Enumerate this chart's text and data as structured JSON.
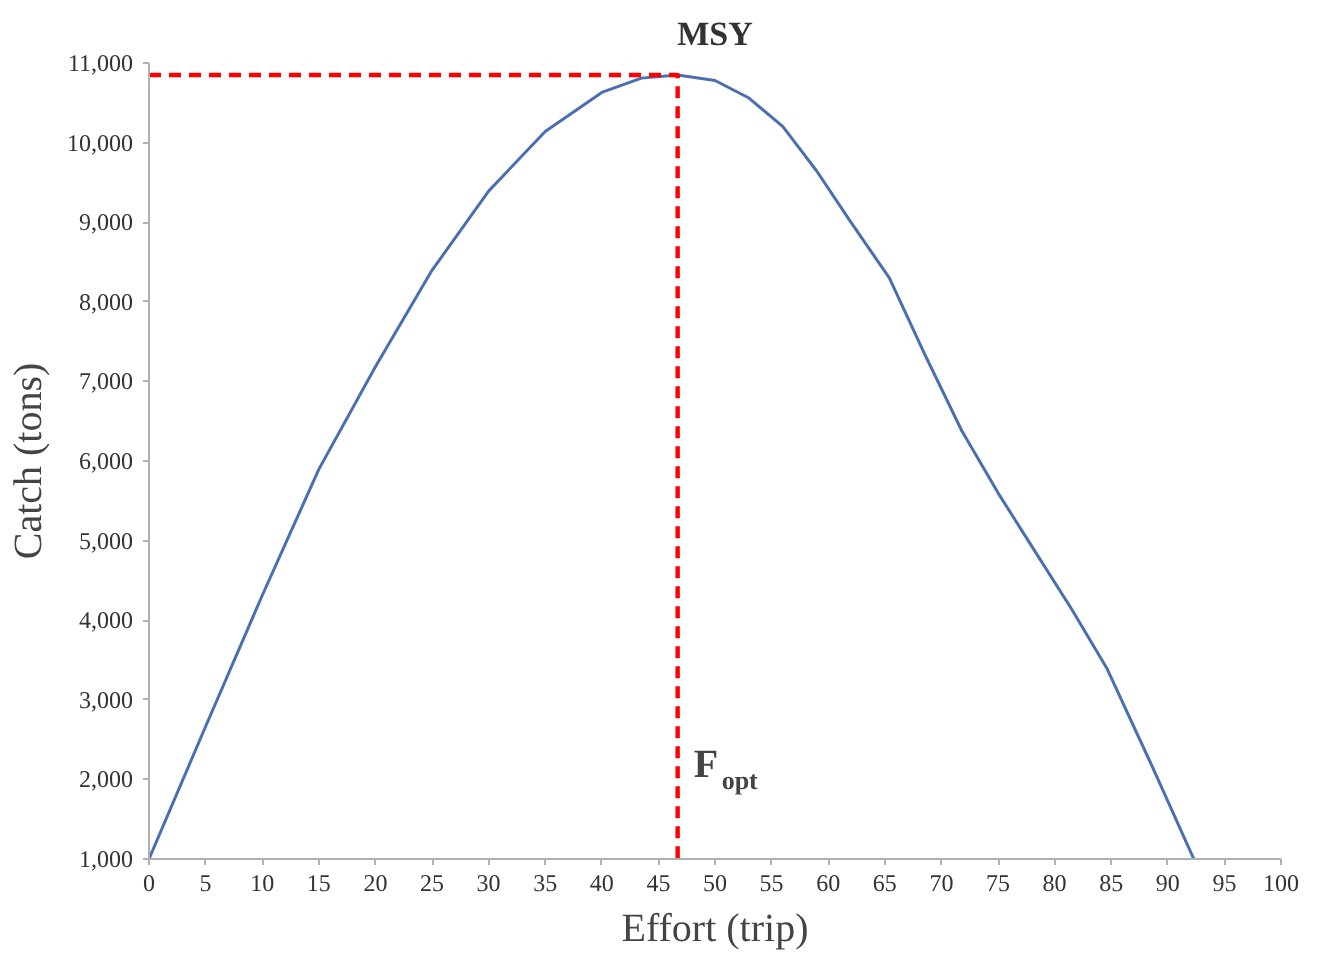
{
  "chart_data": {
    "type": "line",
    "title": "MSY",
    "xlabel": "Effort (trip)",
    "ylabel": "Catch (tons)",
    "xlim": [
      0,
      100
    ],
    "xticks": [
      0,
      5,
      10,
      15,
      20,
      25,
      30,
      35,
      40,
      45,
      50,
      55,
      60,
      65,
      70,
      75,
      80,
      85,
      90,
      95,
      100
    ],
    "ylim": [
      1000,
      11000
    ],
    "yticks": [
      {
        "value": 1000,
        "label": "1,000"
      },
      {
        "value": 2000,
        "label": "2,000"
      },
      {
        "value": 3000,
        "label": "3,000"
      },
      {
        "value": 4000,
        "label": "4,000"
      },
      {
        "value": 5000,
        "label": "5,000"
      },
      {
        "value": 6000,
        "label": "6,000"
      },
      {
        "value": 7000,
        "label": "7,000"
      },
      {
        "value": 8000,
        "label": "8,000"
      },
      {
        "value": 9000,
        "label": "9,000"
      },
      {
        "value": 10000,
        "label": "10,000"
      },
      {
        "value": 11000,
        "label": "11,000"
      }
    ],
    "marker": "none",
    "series": [
      {
        "color": "#4a6fb0",
        "x": [
          0,
          5,
          10,
          15,
          20,
          25,
          30,
          35,
          40,
          43.5,
          46.7,
          50,
          53,
          56,
          59,
          62,
          65.4,
          68.5,
          71.8,
          75,
          78.2,
          81.5,
          84.6,
          88.5,
          92.3
        ],
        "values": [
          1000,
          2665,
          4310,
          5895,
          7185,
          8395,
          9390,
          10140,
          10630,
          10810,
          10850,
          10780,
          10560,
          10200,
          9640,
          9000,
          8300,
          7350,
          6380,
          5600,
          4880,
          4140,
          3400,
          2200,
          1000
        ]
      },
      {
        "color": "#ff0000",
        "line_style": "dashed",
        "x": [
          0,
          46.7,
          46.7
        ],
        "values": [
          10850,
          10850,
          1000
        ]
      }
    ],
    "annotations": [
      {
        "text": "F$_{opt}$",
        "x": 46.7,
        "y": 1900
      }
    ]
  }
}
